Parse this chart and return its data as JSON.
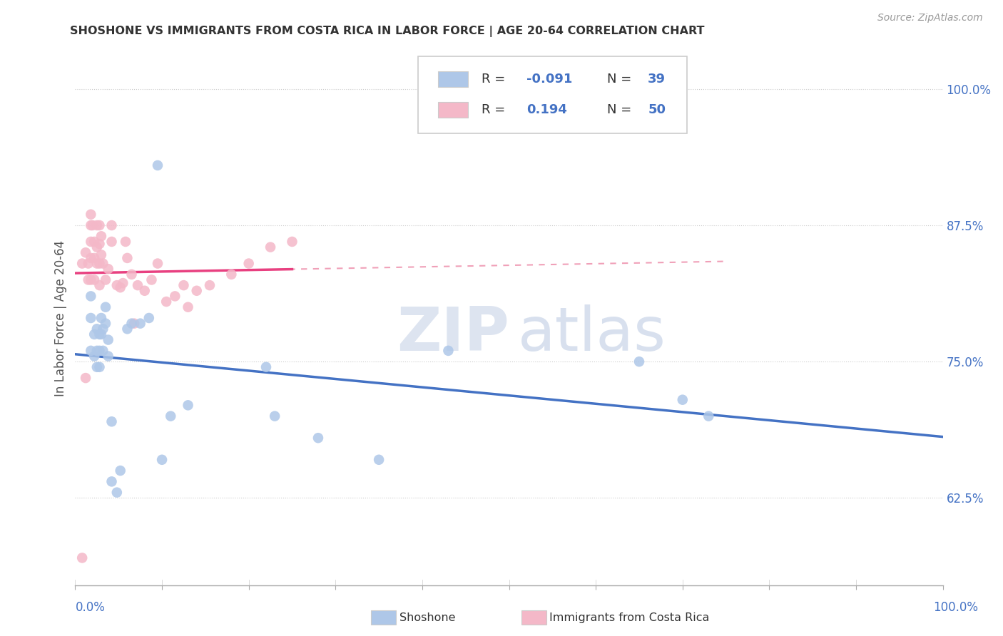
{
  "title": "SHOSHONE VS IMMIGRANTS FROM COSTA RICA IN LABOR FORCE | AGE 20-64 CORRELATION CHART",
  "source": "Source: ZipAtlas.com",
  "ylabel": "In Labor Force | Age 20-64",
  "ytick_labels": [
    "62.5%",
    "75.0%",
    "87.5%",
    "100.0%"
  ],
  "ytick_values": [
    0.625,
    0.75,
    0.875,
    1.0
  ],
  "xlim": [
    0.0,
    1.0
  ],
  "ylim": [
    0.545,
    1.035
  ],
  "color_blue": "#aec7e8",
  "color_pink": "#f4b8c8",
  "trendline_blue_color": "#4472c4",
  "trendline_pink_color": "#e84080",
  "trendline_pink_dash_color": "#f0a0b8",
  "shoshone_x": [
    0.018,
    0.018,
    0.018,
    0.022,
    0.022,
    0.025,
    0.025,
    0.025,
    0.028,
    0.028,
    0.028,
    0.03,
    0.03,
    0.032,
    0.032,
    0.035,
    0.035,
    0.038,
    0.038,
    0.042,
    0.042,
    0.048,
    0.052,
    0.06,
    0.065,
    0.075,
    0.085,
    0.095,
    0.1,
    0.11,
    0.13,
    0.22,
    0.23,
    0.28,
    0.35,
    0.43,
    0.65,
    0.7,
    0.73
  ],
  "shoshone_y": [
    0.76,
    0.79,
    0.81,
    0.775,
    0.755,
    0.78,
    0.76,
    0.745,
    0.775,
    0.76,
    0.745,
    0.79,
    0.775,
    0.76,
    0.78,
    0.8,
    0.785,
    0.77,
    0.755,
    0.695,
    0.64,
    0.63,
    0.65,
    0.78,
    0.785,
    0.785,
    0.79,
    0.93,
    0.66,
    0.7,
    0.71,
    0.745,
    0.7,
    0.68,
    0.66,
    0.76,
    0.75,
    0.715,
    0.7
  ],
  "costarica_x": [
    0.008,
    0.012,
    0.015,
    0.015,
    0.018,
    0.018,
    0.018,
    0.018,
    0.018,
    0.02,
    0.022,
    0.022,
    0.022,
    0.025,
    0.025,
    0.025,
    0.028,
    0.028,
    0.028,
    0.028,
    0.03,
    0.03,
    0.032,
    0.035,
    0.038,
    0.042,
    0.042,
    0.048,
    0.052,
    0.055,
    0.058,
    0.06,
    0.065,
    0.068,
    0.072,
    0.08,
    0.088,
    0.095,
    0.105,
    0.115,
    0.125,
    0.13,
    0.14,
    0.155,
    0.18,
    0.2,
    0.225,
    0.25,
    0.012,
    0.008
  ],
  "costarica_y": [
    0.57,
    0.85,
    0.84,
    0.825,
    0.885,
    0.875,
    0.86,
    0.845,
    0.825,
    0.875,
    0.86,
    0.845,
    0.825,
    0.875,
    0.855,
    0.84,
    0.875,
    0.858,
    0.84,
    0.82,
    0.865,
    0.848,
    0.84,
    0.825,
    0.835,
    0.875,
    0.86,
    0.82,
    0.818,
    0.822,
    0.86,
    0.845,
    0.83,
    0.785,
    0.82,
    0.815,
    0.825,
    0.84,
    0.805,
    0.81,
    0.82,
    0.8,
    0.815,
    0.82,
    0.83,
    0.84,
    0.855,
    0.86,
    0.735,
    0.84
  ]
}
